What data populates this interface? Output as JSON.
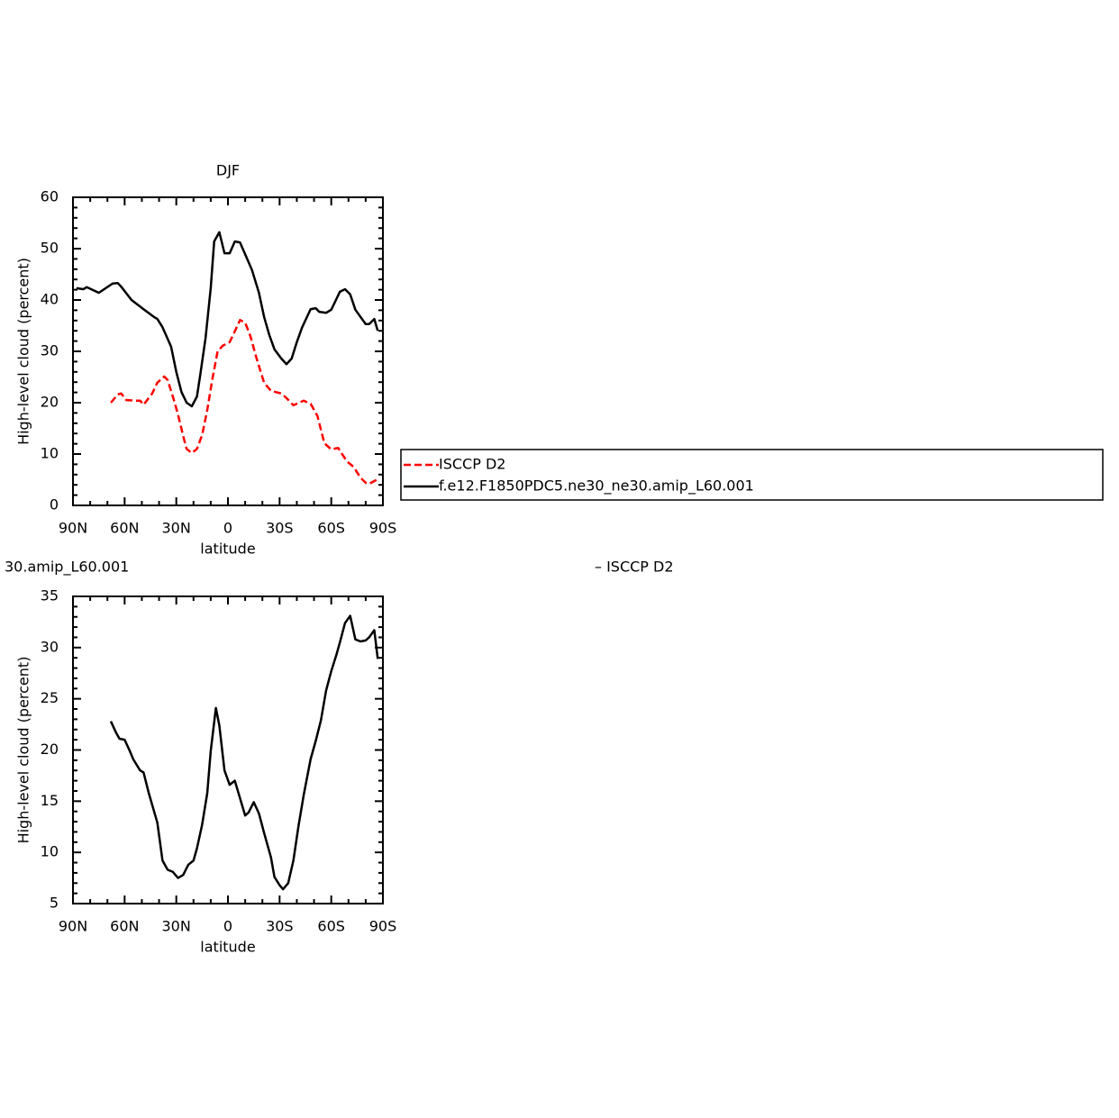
{
  "chart_data": [
    {
      "type": "line",
      "title": "DJF",
      "xlabel": "latitude",
      "ylabel": "High-level cloud (percent)",
      "xlim": [
        90,
        -90
      ],
      "ylim": [
        0,
        60
      ],
      "xticks": [
        {
          "value": 90,
          "label": "90N"
        },
        {
          "value": 60,
          "label": "60N"
        },
        {
          "value": 30,
          "label": "30N"
        },
        0,
        {
          "value": -30,
          "label": "30S"
        },
        {
          "value": -60,
          "label": "60S"
        },
        {
          "value": -90,
          "label": "90S"
        }
      ],
      "yticks": [
        0,
        10,
        20,
        30,
        40,
        50,
        60
      ],
      "xminorticks": [
        80,
        70,
        50,
        40,
        20,
        10,
        -10,
        -20,
        -40,
        -50,
        -70,
        -80
      ],
      "yminorticks": [
        2,
        4,
        6,
        8,
        12,
        14,
        16,
        18,
        22,
        24,
        26,
        28,
        32,
        34,
        36,
        38,
        42,
        44,
        46,
        48,
        52,
        54,
        56,
        58
      ],
      "legend": "right",
      "series": [
        {
          "name": "ISCCP D2",
          "color": "#ff0000",
          "dashed": true,
          "x": [
            68,
            64,
            62,
            59,
            54,
            51,
            49,
            44,
            41,
            37,
            35,
            32,
            29,
            26,
            24,
            21,
            18,
            15,
            12,
            9,
            6,
            3,
            -1,
            -4,
            -7,
            -10,
            -13,
            -17,
            -21,
            -25,
            -31,
            -34,
            -38,
            -44,
            -48,
            -52,
            -56,
            -60,
            -64,
            -69,
            -73,
            -77,
            -80,
            -82,
            -87
          ],
          "values": [
            20,
            21.6,
            21.8,
            20.5,
            20.4,
            20.4,
            19.6,
            21.8,
            23.9,
            25.1,
            24.4,
            21.2,
            17.7,
            13.5,
            11,
            10.2,
            11,
            13.7,
            18.6,
            24.7,
            30,
            31.1,
            31.8,
            33.9,
            36.1,
            35.6,
            33,
            28.2,
            23.9,
            22.3,
            21.8,
            20.9,
            19.5,
            20.4,
            19.8,
            17.4,
            12.1,
            10.9,
            11.2,
            8.6,
            7.5,
            5.4,
            4.4,
            4.2,
            5.1
          ]
        },
        {
          "name": "f.e12.F1850PDC5.ne30_ne30.amip_L60.001",
          "color": "#000000",
          "dashed": false,
          "x": [
            88,
            84,
            82,
            75,
            67,
            64,
            62,
            56,
            49,
            43,
            41,
            38,
            33,
            30,
            27,
            24,
            21,
            18,
            16,
            13,
            10,
            8,
            5,
            2,
            -1,
            -4,
            -7,
            -10,
            -14,
            -18,
            -21,
            -24,
            -27,
            -31,
            -34,
            -37,
            -40,
            -43,
            -48,
            -51,
            -53,
            -57,
            -60,
            -63,
            -65,
            -68,
            -71,
            -74,
            -80,
            -82,
            -85,
            -87
          ],
          "values": [
            42.3,
            42.1,
            42.5,
            41.4,
            43.2,
            43.3,
            42.6,
            40,
            38.2,
            36.7,
            36.3,
            34.7,
            30.9,
            26,
            22.1,
            20,
            19.3,
            21.2,
            25.6,
            32.6,
            42.3,
            51.4,
            53.2,
            49.1,
            49.1,
            51.4,
            51.2,
            48.9,
            45.8,
            41.4,
            36.7,
            33.2,
            30.4,
            28.6,
            27.5,
            28.6,
            31.8,
            34.6,
            38.2,
            38.4,
            37.7,
            37.5,
            38.1,
            40.2,
            41.6,
            42.1,
            41.1,
            38.1,
            35.3,
            35.3,
            36.3,
            34
          ]
        }
      ]
    },
    {
      "type": "line",
      "title": "30.amip_L60.001",
      "subtitle": "– ISCCP D2",
      "xlabel": "latitude",
      "ylabel": "High-level cloud (percent)",
      "xlim": [
        90,
        -90
      ],
      "ylim": [
        5,
        35
      ],
      "xticks": [
        {
          "value": 90,
          "label": "90N"
        },
        {
          "value": 60,
          "label": "60N"
        },
        {
          "value": 30,
          "label": "30N"
        },
        0,
        {
          "value": -30,
          "label": "30S"
        },
        {
          "value": -60,
          "label": "60S"
        },
        {
          "value": -90,
          "label": "90S"
        }
      ],
      "yticks": [
        5,
        10,
        15,
        20,
        25,
        30,
        35
      ],
      "xminorticks": [
        80,
        70,
        50,
        40,
        20,
        10,
        -10,
        -20,
        -40,
        -50,
        -70,
        -80
      ],
      "yminorticks": [
        6,
        7,
        8,
        9,
        11,
        12,
        13,
        14,
        16,
        17,
        18,
        19,
        21,
        22,
        23,
        24,
        26,
        27,
        28,
        29,
        31,
        32,
        33,
        34
      ],
      "series": [
        {
          "color": "#000000",
          "dashed": false,
          "x": [
            68,
            65,
            63,
            60,
            57,
            55,
            51,
            49,
            46,
            41,
            38,
            35,
            32,
            29,
            26,
            23,
            20,
            18,
            15,
            12,
            10,
            7,
            5,
            2,
            -1,
            -4,
            -7,
            -10,
            -12,
            -15,
            -18,
            -21,
            -25,
            -27,
            -30,
            -32,
            -35,
            -38,
            -41,
            -44,
            -48,
            -51,
            -54,
            -57,
            -60,
            -63,
            -65,
            -68,
            -71,
            -74,
            -77,
            -80,
            -82,
            -85,
            -87
          ],
          "values": [
            22.8,
            21.7,
            21.1,
            21,
            19.9,
            19.1,
            18,
            17.8,
            15.8,
            12.9,
            9.2,
            8.3,
            8.1,
            7.5,
            7.8,
            8.8,
            9.2,
            10.4,
            12.7,
            15.8,
            19.9,
            24.1,
            22.4,
            18,
            16.6,
            17,
            15.3,
            13.6,
            13.9,
            14.9,
            13.8,
            11.9,
            9.5,
            7.6,
            6.8,
            6.4,
            7,
            9.2,
            12.6,
            15.6,
            19.1,
            20.9,
            22.9,
            25.8,
            27.7,
            29.3,
            30.5,
            32.4,
            33.1,
            30.8,
            30.6,
            30.7,
            31,
            31.7,
            28.9
          ]
        }
      ]
    }
  ]
}
